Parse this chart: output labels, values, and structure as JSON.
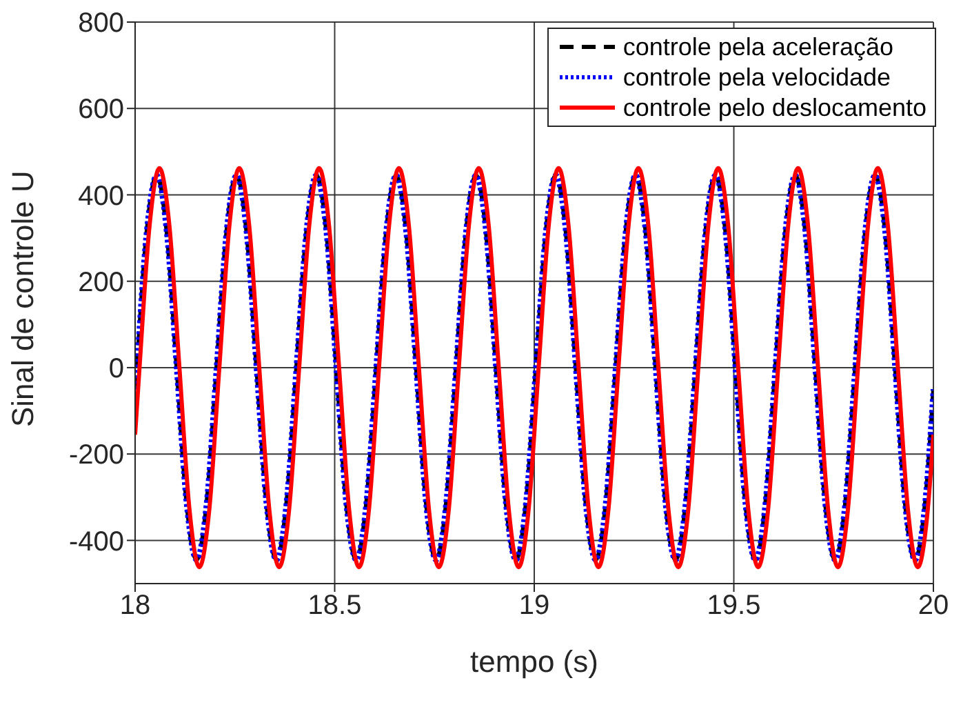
{
  "chart_data": {
    "type": "line",
    "xlabel": "tempo (s)",
    "ylabel": "Sinal de controle U",
    "xlim": [
      18,
      20
    ],
    "xticks": [
      18,
      18.5,
      19,
      19.5,
      20
    ],
    "ylim": [
      -500,
      800
    ],
    "yticks": [
      -400,
      -200,
      0,
      200,
      400,
      600,
      800
    ],
    "grid": true,
    "legend": "top right",
    "series": [
      {
        "name": "controle pela aceleração",
        "color": "#000000",
        "line_style": "dashed",
        "x": [
          18,
          18.004,
          18.029,
          18.054,
          18.079,
          18.104,
          18.129,
          18.154,
          18.179,
          18.204,
          18.229,
          18.254,
          18.279,
          18.304,
          18.329,
          18.354,
          18.379,
          18.404,
          18.429,
          18.454,
          18.479,
          18.504,
          18.529,
          18.554,
          18.579,
          18.604,
          18.629,
          18.654,
          18.679,
          18.704,
          18.729,
          18.754,
          18.779,
          18.804,
          18.829,
          18.854,
          18.879,
          18.904,
          18.929,
          18.954,
          18.979,
          19.004,
          19.029,
          19.054,
          19.079,
          19.104,
          19.129,
          19.154,
          19.179,
          19.204,
          19.229,
          19.254,
          19.279,
          19.304,
          19.329,
          19.354,
          19.379,
          19.404,
          19.429,
          19.454,
          19.479,
          19.504,
          19.529,
          19.554,
          19.579,
          19.604,
          19.629,
          19.654,
          19.679,
          19.704,
          19.729,
          19.754,
          19.779,
          19.804,
          19.829,
          19.854,
          19.879,
          19.904,
          19.929,
          19.954,
          19.979,
          20
        ],
        "values": [
          -50,
          0,
          315,
          445,
          315,
          0,
          -315,
          -445,
          -315,
          0,
          315,
          445,
          315,
          0,
          -315,
          -445,
          -315,
          0,
          315,
          445,
          315,
          0,
          -315,
          -445,
          -315,
          0,
          315,
          445,
          315,
          0,
          -315,
          -445,
          -315,
          0,
          315,
          445,
          315,
          0,
          -315,
          -445,
          -315,
          0,
          315,
          445,
          315,
          0,
          -315,
          -445,
          -315,
          0,
          315,
          445,
          315,
          0,
          -315,
          -445,
          -315,
          0,
          315,
          445,
          315,
          0,
          -315,
          -445,
          -315,
          0,
          315,
          445,
          315,
          0,
          -315,
          -445,
          -315,
          0,
          315,
          445,
          315,
          0,
          -315,
          -445,
          -315,
          -50
        ]
      },
      {
        "name": "controle pela velocidade",
        "color": "#0000ff",
        "line_style": "dotted",
        "x": [
          18,
          18.004,
          18.029,
          18.054,
          18.079,
          18.104,
          18.129,
          18.154,
          18.179,
          18.204,
          18.229,
          18.254,
          18.279,
          18.304,
          18.329,
          18.354,
          18.379,
          18.404,
          18.429,
          18.454,
          18.479,
          18.504,
          18.529,
          18.554,
          18.579,
          18.604,
          18.629,
          18.654,
          18.679,
          18.704,
          18.729,
          18.754,
          18.779,
          18.804,
          18.829,
          18.854,
          18.879,
          18.904,
          18.929,
          18.954,
          18.979,
          19.004,
          19.029,
          19.054,
          19.079,
          19.104,
          19.129,
          19.154,
          19.179,
          19.204,
          19.229,
          19.254,
          19.279,
          19.304,
          19.329,
          19.354,
          19.379,
          19.404,
          19.429,
          19.454,
          19.479,
          19.504,
          19.529,
          19.554,
          19.579,
          19.604,
          19.629,
          19.654,
          19.679,
          19.704,
          19.729,
          19.754,
          19.779,
          19.804,
          19.829,
          19.854,
          19.879,
          19.904,
          19.929,
          19.954,
          19.979,
          20
        ],
        "values": [
          -50,
          0,
          315,
          445,
          315,
          0,
          -315,
          -445,
          -315,
          0,
          315,
          445,
          315,
          0,
          -315,
          -445,
          -315,
          0,
          315,
          445,
          315,
          0,
          -315,
          -445,
          -315,
          0,
          315,
          445,
          315,
          0,
          -315,
          -445,
          -315,
          0,
          315,
          445,
          315,
          0,
          -315,
          -445,
          -315,
          0,
          315,
          445,
          315,
          0,
          -315,
          -445,
          -315,
          0,
          315,
          445,
          315,
          0,
          -315,
          -445,
          -315,
          0,
          315,
          445,
          315,
          0,
          -315,
          -445,
          -315,
          0,
          315,
          445,
          315,
          0,
          -315,
          -445,
          -315,
          0,
          315,
          445,
          315,
          0,
          -315,
          -445,
          -315,
          -50
        ]
      },
      {
        "name": "controle pelo deslocamento",
        "color": "#ff0000",
        "line_style": "solid",
        "x": [
          18,
          18.011,
          18.036,
          18.061,
          18.086,
          18.111,
          18.136,
          18.161,
          18.186,
          18.211,
          18.236,
          18.261,
          18.286,
          18.311,
          18.336,
          18.361,
          18.386,
          18.411,
          18.436,
          18.461,
          18.486,
          18.511,
          18.536,
          18.561,
          18.586,
          18.611,
          18.636,
          18.661,
          18.686,
          18.711,
          18.736,
          18.761,
          18.786,
          18.811,
          18.836,
          18.861,
          18.886,
          18.911,
          18.936,
          18.961,
          18.986,
          19.011,
          19.036,
          19.061,
          19.086,
          19.111,
          19.136,
          19.161,
          19.186,
          19.211,
          19.236,
          19.261,
          19.286,
          19.311,
          19.336,
          19.361,
          19.386,
          19.411,
          19.436,
          19.461,
          19.486,
          19.511,
          19.536,
          19.561,
          19.586,
          19.611,
          19.636,
          19.661,
          19.686,
          19.711,
          19.736,
          19.761,
          19.786,
          19.811,
          19.836,
          19.861,
          19.886,
          19.911,
          19.936,
          19.961,
          19.986,
          20
        ],
        "values": [
          -155,
          0,
          327,
          462,
          327,
          0,
          -327,
          -462,
          -327,
          0,
          327,
          462,
          327,
          0,
          -327,
          -462,
          -327,
          0,
          327,
          462,
          327,
          0,
          -327,
          -462,
          -327,
          0,
          327,
          462,
          327,
          0,
          -327,
          -462,
          -327,
          0,
          327,
          462,
          327,
          0,
          -327,
          -462,
          -327,
          0,
          327,
          462,
          327,
          0,
          -327,
          -462,
          -327,
          0,
          327,
          462,
          327,
          0,
          -327,
          -462,
          -327,
          0,
          327,
          462,
          327,
          0,
          -327,
          -462,
          -327,
          0,
          327,
          462,
          327,
          0,
          -327,
          -462,
          -327,
          0,
          327,
          462,
          327,
          0,
          -327,
          -462,
          -327,
          -155
        ]
      }
    ]
  }
}
